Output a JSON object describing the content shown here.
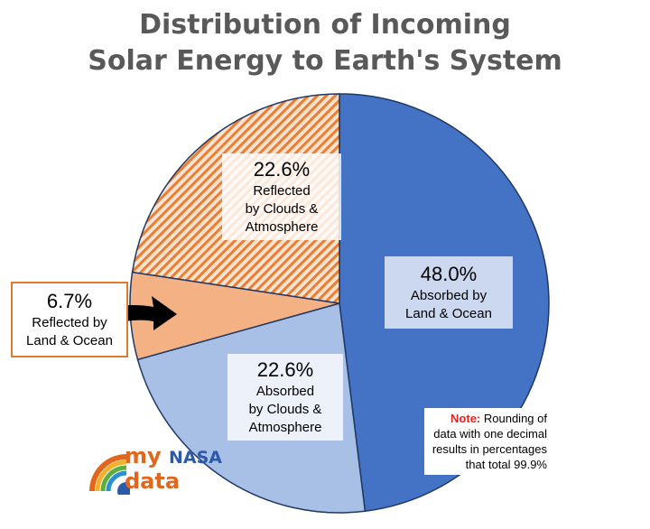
{
  "chart_data": {
    "type": "pie",
    "title": "Distribution of Incoming Solar Energy to Earth's System",
    "title_lines": [
      "Distribution of Incoming",
      "Solar Energy to Earth's System"
    ],
    "slices": [
      {
        "pct_label": "48.0%",
        "value": 48.0,
        "line1": "Absorbed by",
        "line2": "Land & Ocean",
        "color": "#4472c4",
        "pattern": "solid"
      },
      {
        "pct_label": "22.6%",
        "value": 22.6,
        "line1": "Absorbed",
        "line2": "by Clouds &",
        "line3": "Atmosphere",
        "color": "#a9c0e6",
        "pattern": "solid"
      },
      {
        "pct_label": "6.7%",
        "value": 6.7,
        "line1": "Reflected by",
        "line2": "Land & Ocean",
        "color": "#f4b183",
        "pattern": "solid"
      },
      {
        "pct_label": "22.6%",
        "value": 22.6,
        "line1": "Reflected",
        "line2": "by Clouds &",
        "line3": "Atmosphere",
        "color": "#ed7d31",
        "pattern": "diagonal-stripes"
      }
    ],
    "start_angle_deg": 0,
    "direction": "clockwise",
    "note": {
      "label": "Note:",
      "text": "Rounding of data with one decimal results in percentages that total 99.9%"
    },
    "legend": "none",
    "grid": false
  },
  "logo": {
    "name": "my-nasa-data-logo",
    "line1_a": "my ",
    "line1_b": "NASA",
    "line2": "data"
  },
  "colors": {
    "title": "#595959",
    "outline": "#1f3864",
    "note_label": "#e8231e",
    "callout_border": "#e07a2e"
  }
}
